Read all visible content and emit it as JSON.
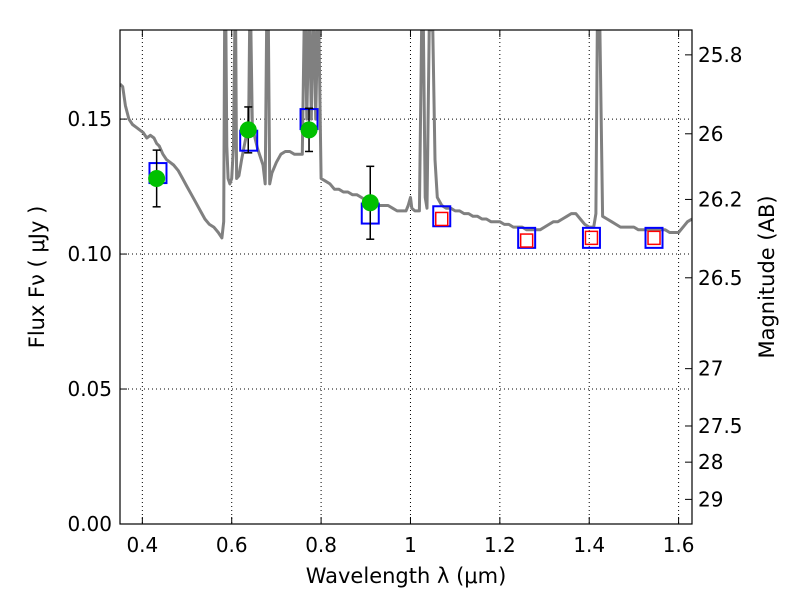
{
  "chart_data": {
    "type": "scatter",
    "xlabel": "Wavelength  λ (μm)",
    "ylabel": "Flux  Fν ( μJy )",
    "y2label": "Magnitude (AB)",
    "xlim": [
      0.35,
      1.63
    ],
    "ylim": [
      0.0,
      0.183
    ],
    "grid": true,
    "x_ticks": [
      0.4,
      0.6,
      0.8,
      1.0,
      1.2,
      1.4,
      1.6
    ],
    "x_tick_labels": [
      "0.4",
      "0.6",
      "0.8",
      "1",
      "1.2",
      "1.4",
      "1.6"
    ],
    "y_ticks": [
      0.0,
      0.05,
      0.1,
      0.15
    ],
    "y_tick_labels": [
      "0.00",
      "0.05",
      "0.10",
      "0.15"
    ],
    "mag_ticks": [
      25.8,
      26,
      26.2,
      26.5,
      27,
      27.5,
      28,
      29
    ],
    "mag_tick_labels": [
      "25.8",
      "26",
      "26.2",
      "26.5",
      "27",
      "27.5",
      "28",
      "29"
    ],
    "series": [
      {
        "kind": "line",
        "color": "#808080",
        "points": [
          [
            0.35,
            0.163
          ],
          [
            0.356,
            0.162
          ],
          [
            0.362,
            0.155
          ],
          [
            0.37,
            0.15
          ],
          [
            0.378,
            0.148
          ],
          [
            0.386,
            0.147
          ],
          [
            0.394,
            0.146
          ],
          [
            0.402,
            0.145
          ],
          [
            0.41,
            0.143
          ],
          [
            0.418,
            0.144
          ],
          [
            0.426,
            0.143
          ],
          [
            0.432,
            0.141
          ],
          [
            0.438,
            0.14
          ],
          [
            0.446,
            0.137
          ],
          [
            0.454,
            0.135
          ],
          [
            0.462,
            0.134
          ],
          [
            0.47,
            0.133
          ],
          [
            0.48,
            0.131
          ],
          [
            0.49,
            0.128
          ],
          [
            0.5,
            0.125
          ],
          [
            0.51,
            0.122
          ],
          [
            0.52,
            0.119
          ],
          [
            0.53,
            0.116
          ],
          [
            0.54,
            0.113
          ],
          [
            0.55,
            0.111
          ],
          [
            0.56,
            0.11
          ],
          [
            0.57,
            0.108
          ],
          [
            0.578,
            0.106
          ],
          [
            0.582,
            0.112
          ],
          [
            0.584,
            0.183
          ],
          [
            0.587,
            0.183
          ],
          [
            0.589,
            0.14
          ],
          [
            0.592,
            0.128
          ],
          [
            0.596,
            0.126
          ],
          [
            0.6,
            0.128
          ],
          [
            0.604,
            0.14
          ],
          [
            0.607,
            0.183
          ],
          [
            0.609,
            0.183
          ],
          [
            0.611,
            0.128
          ],
          [
            0.616,
            0.129
          ],
          [
            0.622,
            0.135
          ],
          [
            0.628,
            0.14
          ],
          [
            0.634,
            0.145
          ],
          [
            0.638,
            0.15
          ],
          [
            0.64,
            0.183
          ],
          [
            0.643,
            0.183
          ],
          [
            0.646,
            0.148
          ],
          [
            0.652,
            0.143
          ],
          [
            0.658,
            0.139
          ],
          [
            0.664,
            0.136
          ],
          [
            0.67,
            0.133
          ],
          [
            0.675,
            0.126
          ],
          [
            0.678,
            0.183
          ],
          [
            0.682,
            0.183
          ],
          [
            0.685,
            0.126
          ],
          [
            0.69,
            0.13
          ],
          [
            0.7,
            0.134
          ],
          [
            0.71,
            0.137
          ],
          [
            0.72,
            0.138
          ],
          [
            0.73,
            0.138
          ],
          [
            0.74,
            0.137
          ],
          [
            0.75,
            0.137
          ],
          [
            0.758,
            0.137
          ],
          [
            0.762,
            0.183
          ],
          [
            0.765,
            0.183
          ],
          [
            0.768,
            0.15
          ],
          [
            0.772,
            0.183
          ],
          [
            0.775,
            0.183
          ],
          [
            0.778,
            0.15
          ],
          [
            0.782,
            0.183
          ],
          [
            0.785,
            0.183
          ],
          [
            0.788,
            0.15
          ],
          [
            0.792,
            0.183
          ],
          [
            0.795,
            0.183
          ],
          [
            0.8,
            0.128
          ],
          [
            0.81,
            0.127
          ],
          [
            0.82,
            0.126
          ],
          [
            0.83,
            0.124
          ],
          [
            0.84,
            0.124
          ],
          [
            0.85,
            0.123
          ],
          [
            0.86,
            0.123
          ],
          [
            0.87,
            0.122
          ],
          [
            0.88,
            0.122
          ],
          [
            0.89,
            0.121
          ],
          [
            0.9,
            0.12
          ],
          [
            0.91,
            0.12
          ],
          [
            0.92,
            0.119
          ],
          [
            0.93,
            0.118
          ],
          [
            0.94,
            0.118
          ],
          [
            0.95,
            0.118
          ],
          [
            0.96,
            0.117
          ],
          [
            0.97,
            0.116
          ],
          [
            0.98,
            0.116
          ],
          [
            0.99,
            0.116
          ],
          [
            0.995,
            0.118
          ],
          [
            1.0,
            0.121
          ],
          [
            1.003,
            0.117
          ],
          [
            1.01,
            0.116
          ],
          [
            1.02,
            0.116
          ],
          [
            1.025,
            0.183
          ],
          [
            1.029,
            0.183
          ],
          [
            1.033,
            0.121
          ],
          [
            1.037,
            0.117
          ],
          [
            1.042,
            0.183
          ],
          [
            1.05,
            0.183
          ],
          [
            1.055,
            0.135
          ],
          [
            1.06,
            0.121
          ],
          [
            1.07,
            0.118
          ],
          [
            1.08,
            0.117
          ],
          [
            1.09,
            0.117
          ],
          [
            1.1,
            0.116
          ],
          [
            1.11,
            0.116
          ],
          [
            1.12,
            0.115
          ],
          [
            1.13,
            0.115
          ],
          [
            1.14,
            0.114
          ],
          [
            1.15,
            0.114
          ],
          [
            1.16,
            0.113
          ],
          [
            1.17,
            0.113
          ],
          [
            1.18,
            0.112
          ],
          [
            1.19,
            0.112
          ],
          [
            1.2,
            0.112
          ],
          [
            1.21,
            0.111
          ],
          [
            1.22,
            0.111
          ],
          [
            1.23,
            0.11
          ],
          [
            1.24,
            0.11
          ],
          [
            1.25,
            0.11
          ],
          [
            1.26,
            0.109
          ],
          [
            1.27,
            0.109
          ],
          [
            1.28,
            0.109
          ],
          [
            1.29,
            0.109
          ],
          [
            1.3,
            0.11
          ],
          [
            1.31,
            0.111
          ],
          [
            1.32,
            0.112
          ],
          [
            1.33,
            0.112
          ],
          [
            1.34,
            0.113
          ],
          [
            1.35,
            0.114
          ],
          [
            1.36,
            0.115
          ],
          [
            1.37,
            0.115
          ],
          [
            1.38,
            0.113
          ],
          [
            1.39,
            0.111
          ],
          [
            1.4,
            0.11
          ],
          [
            1.41,
            0.11
          ],
          [
            1.415,
            0.115
          ],
          [
            1.418,
            0.183
          ],
          [
            1.424,
            0.183
          ],
          [
            1.43,
            0.114
          ],
          [
            1.44,
            0.113
          ],
          [
            1.45,
            0.112
          ],
          [
            1.46,
            0.111
          ],
          [
            1.47,
            0.11
          ],
          [
            1.48,
            0.11
          ],
          [
            1.49,
            0.11
          ],
          [
            1.5,
            0.11
          ],
          [
            1.51,
            0.109
          ],
          [
            1.52,
            0.109
          ],
          [
            1.53,
            0.109
          ],
          [
            1.54,
            0.109
          ],
          [
            1.55,
            0.109
          ],
          [
            1.56,
            0.109
          ],
          [
            1.57,
            0.109
          ],
          [
            1.58,
            0.108
          ],
          [
            1.59,
            0.108
          ],
          [
            1.6,
            0.108
          ],
          [
            1.61,
            0.11
          ],
          [
            1.62,
            0.112
          ],
          [
            1.63,
            0.113
          ]
        ]
      },
      {
        "kind": "model-square",
        "edge_color": "#0000ff",
        "points": [
          [
            0.435,
            0.13
          ],
          [
            0.638,
            0.142
          ],
          [
            0.773,
            0.15
          ],
          [
            0.91,
            0.115
          ],
          [
            1.07,
            0.114
          ],
          [
            1.26,
            0.106
          ],
          [
            1.405,
            0.106
          ],
          [
            1.545,
            0.106
          ]
        ]
      },
      {
        "kind": "upper-limit-square",
        "edge_color": "#ff0000",
        "points": [
          [
            1.07,
            0.113
          ],
          [
            1.26,
            0.105
          ],
          [
            1.405,
            0.106
          ],
          [
            1.545,
            0.106
          ]
        ]
      },
      {
        "kind": "observed-errorbar",
        "color": "#00c000",
        "points": [
          {
            "x": 0.432,
            "y": 0.128,
            "err": 0.0105
          },
          {
            "x": 0.637,
            "y": 0.146,
            "err": 0.0085
          },
          {
            "x": 0.773,
            "y": 0.146,
            "err": 0.008
          },
          {
            "x": 0.91,
            "y": 0.119,
            "err": 0.0135
          }
        ]
      }
    ]
  }
}
